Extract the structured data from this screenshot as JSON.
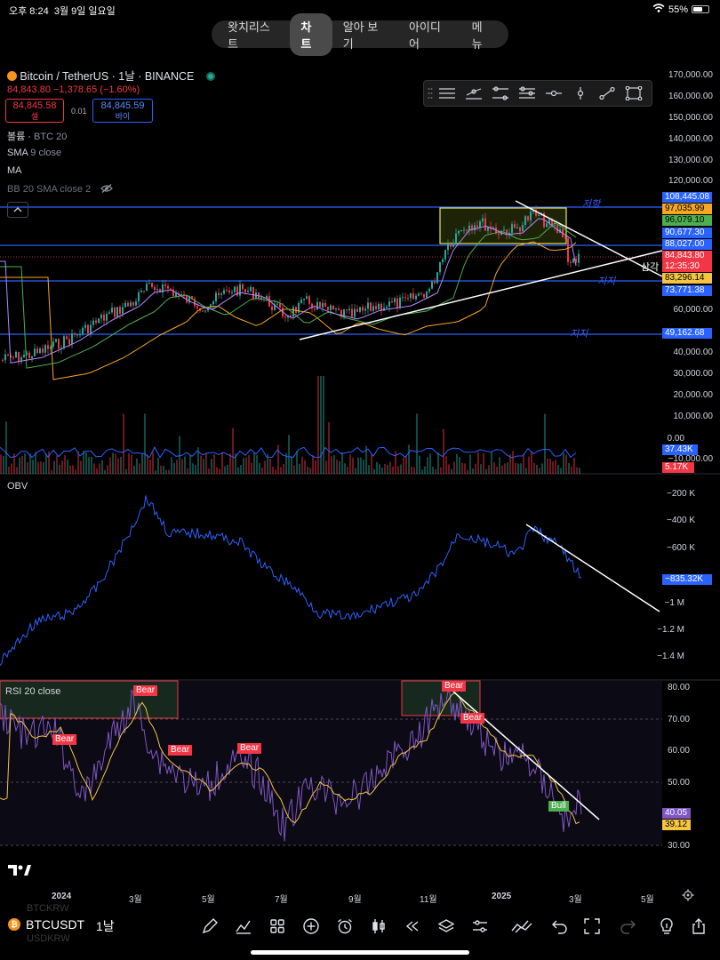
{
  "status": {
    "time": "오후 8:24",
    "date": "3월 9일 일요일",
    "battery": "55%"
  },
  "tabs": [
    "왓치리스트",
    "차트",
    "알아 보기",
    "아이디어",
    "메뉴"
  ],
  "active_tab": 1,
  "symbol": {
    "title": "Bitcoin / TetherUS · 1날 · BINANCE",
    "price": "84,843.80",
    "change": "−1,378.65 (−1.60%)",
    "sell_price": "84,845.58",
    "sell_label": "셀",
    "spread": "0.01",
    "buy_price": "84,845.59",
    "buy_label": "바이"
  },
  "indicators": [
    "볼륨 · BTC 20",
    "SMA 9 close",
    "MA",
    "BB 20 SMA close 2"
  ],
  "indicator_parts": {
    "vol_name": "볼륨",
    "vol_val": "BTC 20",
    "sma_name": "SMA",
    "sma_val": "9 close",
    "ma": "MA",
    "bb": "BB 20 SMA close 2"
  },
  "obv_label": "OBV",
  "rsi_label": "RSI 20 close",
  "price_axis": [
    "170,000.00",
    "160,000.00",
    "150,000.00",
    "140,000.00",
    "130,000.00",
    "120,000.00",
    "60,000.00",
    "40,000.00",
    "30,000.00",
    "20,000.00",
    "10,000.00",
    "0.00",
    "−10,000.00"
  ],
  "price_tags": [
    {
      "text": "108,445.08",
      "color": "#2962ff"
    },
    {
      "text": "97,035.99",
      "color": "#f5a623"
    },
    {
      "text": "96,079.10",
      "color": "#4caf50"
    },
    {
      "text": "90,677.30",
      "color": "#2962ff"
    },
    {
      "text": "88,027.00",
      "color": "#2962ff"
    },
    {
      "text": "84,843.80",
      "color": "#f23645"
    },
    {
      "text": "12:35:30",
      "color": "#f23645"
    },
    {
      "text": "83,296.14",
      "color": "#f5c542"
    },
    {
      "text": "73,771.38",
      "color": "#2962ff"
    },
    {
      "text": "49,162.68",
      "color": "#2962ff"
    },
    {
      "text": "37.43K",
      "color": "#2962ff"
    },
    {
      "text": "5.17K",
      "color": "#f23645"
    }
  ],
  "obv_axis": [
    "−200 K",
    "−400 K",
    "−600 K",
    "−1 M",
    "−1.2 M",
    "−1.4 M"
  ],
  "obv_tag": "−835.32K",
  "rsi_axis": [
    "80.00",
    "70.00",
    "60.00",
    "50.00",
    "30.00"
  ],
  "rsi_tags": [
    {
      "text": "40.05",
      "color": "#7e57c2"
    },
    {
      "text": "39.12",
      "color": "#f5c542"
    }
  ],
  "time_axis": [
    "2024",
    "3월",
    "5월",
    "7월",
    "9월",
    "11월",
    "2025",
    "3월",
    "5월"
  ],
  "annotations": {
    "triangle": "삼각",
    "h1": "저항",
    "s1": "지지",
    "s2": "지지"
  },
  "rsi_signals": [
    "Bear",
    "Bear",
    "Bear",
    "Bear",
    "Bear",
    "Bear",
    "Bull"
  ],
  "bottom": {
    "symbol": "BTCUSDT",
    "interval": "1날",
    "ghost1": "BTCKRW",
    "ghost2": "USDKRW"
  },
  "colors": {
    "accent": "#2962ff",
    "up": "#26a69a",
    "down": "#f23645",
    "rsi": "#7e57c2"
  }
}
